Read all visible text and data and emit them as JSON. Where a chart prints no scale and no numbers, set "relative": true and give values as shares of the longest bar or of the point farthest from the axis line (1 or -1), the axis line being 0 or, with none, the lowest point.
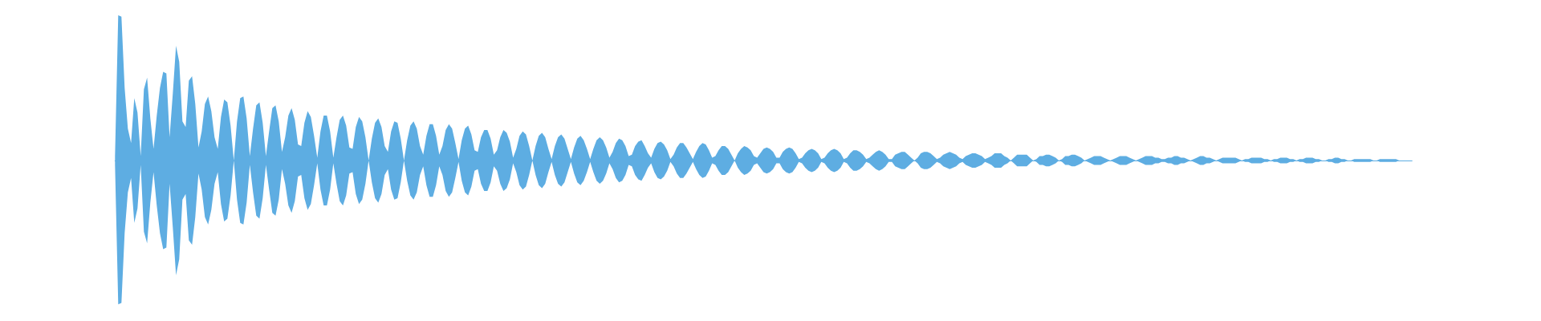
{
  "chart_data": {
    "type": "area",
    "relative": true,
    "categories": [
      null,
      null,
      null,
      null,
      null,
      null,
      null,
      null,
      null,
      null,
      null,
      null,
      null,
      null,
      null,
      null,
      null,
      null,
      null,
      null,
      null,
      null,
      null,
      null,
      null,
      null,
      null,
      null,
      null,
      null,
      null,
      null,
      null,
      null,
      null,
      null,
      null,
      null,
      null,
      null,
      null,
      null,
      null,
      null,
      null,
      null,
      null,
      null,
      null,
      null,
      null,
      null,
      null,
      null,
      null,
      null,
      null,
      null,
      null,
      null,
      null,
      null,
      null,
      null,
      null,
      null,
      null,
      null,
      null,
      null,
      null,
      null,
      null,
      null,
      null,
      null,
      null,
      null,
      null,
      null,
      null,
      null,
      null,
      null,
      null,
      null,
      null,
      null,
      null,
      null,
      null,
      null,
      null,
      null,
      null,
      null,
      null,
      null,
      null,
      null,
      null,
      null,
      null,
      null,
      null,
      null,
      null,
      null,
      null,
      null,
      null,
      null,
      null,
      null,
      null,
      null,
      null,
      null,
      null,
      null,
      null,
      null,
      null,
      null,
      null,
      null,
      null,
      null,
      null,
      null,
      null,
      null,
      null,
      null,
      null,
      null,
      null,
      null,
      null,
      null,
      null,
      null,
      null,
      null,
      null,
      null,
      null,
      null,
      null,
      null,
      null,
      null,
      null,
      null,
      null,
      null,
      null,
      null,
      null,
      null,
      null,
      null,
      null,
      null,
      null,
      null,
      null,
      null,
      null,
      null,
      null,
      null,
      null,
      null,
      null,
      null,
      null,
      null,
      null,
      null,
      null,
      null,
      null,
      null,
      null,
      null,
      null,
      null,
      null,
      null,
      null,
      null,
      null,
      null,
      null,
      null,
      null,
      null,
      null,
      null,
      null,
      null,
      null,
      null,
      null,
      null,
      null,
      null,
      null,
      null,
      null,
      null,
      null,
      null,
      null,
      null,
      null,
      null,
      null,
      null,
      null,
      null,
      null,
      null,
      null,
      null,
      null,
      null,
      null,
      null,
      null,
      null,
      null,
      null,
      null,
      null,
      null,
      null,
      null,
      null,
      null,
      null,
      null,
      null,
      null,
      null,
      null,
      null,
      null,
      null,
      null,
      null,
      null,
      null,
      null,
      null,
      null,
      null,
      null,
      null,
      null,
      null,
      null,
      null,
      null,
      null,
      null,
      null,
      null,
      null,
      null,
      null,
      null,
      null,
      null,
      null,
      null,
      null,
      null,
      null,
      null,
      null,
      null,
      null,
      null,
      null,
      null,
      null,
      null,
      null,
      null,
      null,
      null,
      null,
      null,
      null,
      null,
      null,
      null,
      null,
      null,
      null,
      null,
      null,
      null,
      null,
      null,
      null,
      null,
      null,
      null,
      null,
      null,
      null,
      null,
      null,
      null,
      null,
      null,
      null,
      null,
      null,
      null,
      null,
      null,
      null,
      null,
      null,
      null,
      null,
      null,
      null,
      null,
      null,
      null,
      null,
      null,
      null,
      null,
      null,
      null,
      null,
      null,
      null,
      null,
      null,
      null,
      null,
      null,
      null,
      null,
      null,
      null,
      null,
      null,
      null,
      null,
      null,
      null,
      null,
      null,
      null,
      null,
      null,
      null,
      null,
      null,
      null,
      null,
      null,
      null,
      null,
      null,
      null,
      null,
      null,
      null,
      null,
      null,
      null,
      null,
      null,
      null,
      null,
      null,
      null,
      null,
      null,
      null,
      null,
      null,
      null,
      null,
      null,
      null,
      null,
      null,
      null,
      null,
      null,
      null,
      null,
      null,
      null,
      null
    ],
    "series": [
      {
        "color": "#5dade2",
        "values": [
          0.03,
          1,
          0.99,
          0.5,
          0.22,
          0.12,
          0.43,
          0.33,
          0.03,
          0.49,
          0.57,
          0.29,
          0.08,
          0.31,
          0.5,
          0.61,
          0.6,
          0.16,
          0.46,
          0.79,
          0.68,
          0.27,
          0.23,
          0.55,
          0.58,
          0.39,
          0.09,
          0.2,
          0.39,
          0.44,
          0.34,
          0.16,
          0.08,
          0.3,
          0.42,
          0.4,
          0.24,
          0,
          0.27,
          0.43,
          0.44,
          0.29,
          0.03,
          0.22,
          0.38,
          0.4,
          0.26,
          0.03,
          0.2,
          0.36,
          0.38,
          0.27,
          0.06,
          0.16,
          0.31,
          0.36,
          0.28,
          0.11,
          0.1,
          0.26,
          0.34,
          0.3,
          0.17,
          0.02,
          0.2,
          0.31,
          0.31,
          0.2,
          0.02,
          0.16,
          0.28,
          0.31,
          0.24,
          0.09,
          0.08,
          0.23,
          0.3,
          0.27,
          0.16,
          0,
          0.15,
          0.26,
          0.29,
          0.23,
          0.1,
          0.06,
          0.2,
          0.27,
          0.26,
          0.15,
          0,
          0.14,
          0.24,
          0.27,
          0.22,
          0.1,
          0.04,
          0.17,
          0.25,
          0.25,
          0.17,
          0.04,
          0.1,
          0.21,
          0.25,
          0.22,
          0.12,
          0.01,
          0.14,
          0.22,
          0.24,
          0.18,
          0.07,
          0.06,
          0.16,
          0.21,
          0.21,
          0.15,
          0.04,
          0.07,
          0.16,
          0.21,
          0.19,
          0.13,
          0.02,
          0.08,
          0.17,
          0.2,
          0.18,
          0.1,
          0,
          0.1,
          0.17,
          0.19,
          0.16,
          0.08,
          0.01,
          0.1,
          0.16,
          0.18,
          0.15,
          0.08,
          0.01,
          0.09,
          0.15,
          0.17,
          0.14,
          0.08,
          0.01,
          0.08,
          0.14,
          0.16,
          0.14,
          0.09,
          0.02,
          0.06,
          0.12,
          0.15,
          0.14,
          0.1,
          0.03,
          0.04,
          0.1,
          0.13,
          0.14,
          0.1,
          0.05,
          0.02,
          0.08,
          0.12,
          0.13,
          0.11,
          0.07,
          0.01,
          0.04,
          0.09,
          0.12,
          0.12,
          0.09,
          0.05,
          0.01,
          0.06,
          0.1,
          0.12,
          0.11,
          0.07,
          0.02,
          0.03,
          0.07,
          0.1,
          0.1,
          0.08,
          0.04,
          0,
          0.05,
          0.08,
          0.1,
          0.09,
          0.07,
          0.03,
          0.02,
          0.05,
          0.08,
          0.09,
          0.08,
          0.06,
          0.02,
          0.02,
          0.06,
          0.08,
          0.09,
          0.08,
          0.05,
          0.01,
          0.02,
          0.05,
          0.07,
          0.08,
          0.07,
          0.05,
          0.01,
          0.02,
          0.05,
          0.07,
          0.08,
          0.07,
          0.05,
          0.01,
          0.02,
          0.05,
          0.07,
          0.07,
          0.06,
          0.04,
          0.01,
          0.02,
          0.04,
          0.06,
          0.07,
          0.06,
          0.04,
          0.01,
          0.01,
          0.04,
          0.05,
          0.06,
          0.06,
          0.04,
          0.02,
          0,
          0.02,
          0.05,
          0.06,
          0.06,
          0.05,
          0.03,
          0.01,
          0.02,
          0.04,
          0.05,
          0.06,
          0.05,
          0.04,
          0.02,
          0.01,
          0.03,
          0.04,
          0.05,
          0.05,
          0.04,
          0.03,
          0.01,
          0.02,
          0.03,
          0.05,
          0.05,
          0.05,
          0.03,
          0.02,
          0,
          0.02,
          0.04,
          0.04,
          0.04,
          0.04,
          0.02,
          0,
          0.01,
          0.03,
          0.03,
          0.04,
          0.04,
          0.03,
          0.02,
          0,
          0.01,
          0.03,
          0.03,
          0.04,
          0.04,
          0.03,
          0.02,
          0,
          0.01,
          0.02,
          0.03,
          0.03,
          0.03,
          0.02,
          0.01,
          0,
          0.01,
          0.02,
          0.03,
          0.03,
          0.03,
          0.02,
          0.01,
          0,
          0.01,
          0.02,
          0.03,
          0.03,
          0.03,
          0.02,
          0.02,
          0.01,
          0.01,
          0.02,
          0.02,
          0.03,
          0.03,
          0.02,
          0.02,
          0.01,
          0,
          0.01,
          0.02,
          0.03,
          0.03,
          0.02,
          0.02,
          0.01,
          0,
          0.01,
          0.02,
          0.02,
          0.02,
          0.02,
          0.02,
          0.01,
          0,
          0.01,
          0.01,
          0.02,
          0.02,
          0.02,
          0.02,
          0.01,
          0.01,
          0,
          0.01,
          0.01,
          0.02,
          0.02,
          0.02,
          0.01,
          0.01,
          0,
          0.01,
          0.01,
          0.02,
          0.02,
          0.02,
          0.01,
          0.01,
          0,
          0,
          0.01,
          0.01,
          0.02,
          0.02,
          0.01,
          0.01,
          0,
          0,
          0.01,
          0.01,
          0.01,
          0.01,
          0.01,
          0.01,
          0,
          0,
          0.01,
          0.01,
          0.01,
          0.01,
          0.01,
          0.01,
          0,
          0,
          0,
          0,
          0
        ]
      },
      {
        "color": "#5eade2",
        "values": [
          -0.03,
          -0.99,
          -0.98,
          -0.5,
          -0.22,
          -0.12,
          -0.43,
          -0.33,
          -0.03,
          -0.49,
          -0.57,
          -0.29,
          -0.08,
          -0.31,
          -0.5,
          -0.61,
          -0.6,
          -0.16,
          -0.46,
          -0.79,
          -0.68,
          -0.27,
          -0.23,
          -0.55,
          -0.58,
          -0.39,
          -0.09,
          -0.2,
          -0.39,
          -0.44,
          -0.34,
          -0.16,
          -0.08,
          -0.3,
          -0.42,
          -0.4,
          -0.24,
          0,
          -0.27,
          -0.43,
          -0.44,
          -0.29,
          -0.03,
          -0.22,
          -0.38,
          -0.4,
          -0.26,
          -0.03,
          -0.2,
          -0.36,
          -0.38,
          -0.27,
          -0.06,
          -0.16,
          -0.31,
          -0.36,
          -0.28,
          -0.11,
          -0.1,
          -0.26,
          -0.34,
          -0.3,
          -0.17,
          -0.02,
          -0.2,
          -0.31,
          -0.31,
          -0.2,
          -0.02,
          -0.16,
          -0.28,
          -0.31,
          -0.24,
          -0.09,
          -0.08,
          -0.23,
          -0.3,
          -0.27,
          -0.16,
          0,
          -0.15,
          -0.26,
          -0.29,
          -0.23,
          -0.1,
          -0.06,
          -0.2,
          -0.27,
          -0.26,
          -0.15,
          0,
          -0.14,
          -0.24,
          -0.27,
          -0.22,
          -0.1,
          -0.04,
          -0.17,
          -0.25,
          -0.25,
          -0.17,
          -0.04,
          -0.1,
          -0.21,
          -0.25,
          -0.22,
          -0.12,
          -0.01,
          -0.14,
          -0.22,
          -0.24,
          -0.18,
          -0.07,
          -0.06,
          -0.16,
          -0.21,
          -0.21,
          -0.15,
          -0.04,
          -0.07,
          -0.16,
          -0.21,
          -0.19,
          -0.13,
          -0.02,
          -0.08,
          -0.17,
          -0.2,
          -0.18,
          -0.1,
          0,
          -0.1,
          -0.17,
          -0.19,
          -0.16,
          -0.08,
          -0.01,
          -0.1,
          -0.16,
          -0.18,
          -0.15,
          -0.08,
          -0.01,
          -0.09,
          -0.15,
          -0.17,
          -0.14,
          -0.08,
          -0.01,
          -0.08,
          -0.14,
          -0.16,
          -0.14,
          -0.09,
          -0.02,
          -0.06,
          -0.12,
          -0.15,
          -0.14,
          -0.1,
          -0.03,
          -0.04,
          -0.1,
          -0.13,
          -0.14,
          -0.1,
          -0.05,
          -0.02,
          -0.08,
          -0.12,
          -0.13,
          -0.11,
          -0.07,
          -0.01,
          -0.04,
          -0.09,
          -0.12,
          -0.12,
          -0.09,
          -0.05,
          -0.01,
          -0.06,
          -0.1,
          -0.12,
          -0.11,
          -0.07,
          -0.02,
          -0.03,
          -0.07,
          -0.1,
          -0.1,
          -0.08,
          -0.04,
          0,
          -0.05,
          -0.08,
          -0.1,
          -0.09,
          -0.07,
          -0.03,
          -0.02,
          -0.05,
          -0.08,
          -0.09,
          -0.08,
          -0.06,
          -0.02,
          -0.02,
          -0.06,
          -0.08,
          -0.09,
          -0.08,
          -0.05,
          -0.01,
          -0.02,
          -0.05,
          -0.07,
          -0.08,
          -0.07,
          -0.05,
          -0.01,
          -0.02,
          -0.05,
          -0.07,
          -0.08,
          -0.07,
          -0.05,
          -0.01,
          -0.02,
          -0.05,
          -0.07,
          -0.07,
          -0.06,
          -0.04,
          -0.01,
          -0.02,
          -0.04,
          -0.06,
          -0.07,
          -0.06,
          -0.04,
          -0.01,
          -0.01,
          -0.04,
          -0.05,
          -0.06,
          -0.06,
          -0.04,
          -0.02,
          0,
          -0.02,
          -0.05,
          -0.06,
          -0.06,
          -0.05,
          -0.03,
          -0.01,
          -0.02,
          -0.04,
          -0.05,
          -0.06,
          -0.05,
          -0.04,
          -0.02,
          -0.01,
          -0.03,
          -0.04,
          -0.05,
          -0.05,
          -0.04,
          -0.03,
          -0.01,
          -0.02,
          -0.03,
          -0.05,
          -0.05,
          -0.05,
          -0.03,
          -0.02,
          0,
          -0.02,
          -0.04,
          -0.04,
          -0.04,
          -0.04,
          -0.02,
          0,
          -0.01,
          -0.03,
          -0.03,
          -0.04,
          -0.04,
          -0.03,
          -0.02,
          0,
          -0.01,
          -0.03,
          -0.03,
          -0.04,
          -0.04,
          -0.03,
          -0.02,
          0,
          -0.01,
          -0.02,
          -0.03,
          -0.03,
          -0.03,
          -0.02,
          -0.01,
          0,
          -0.01,
          -0.02,
          -0.03,
          -0.03,
          -0.03,
          -0.02,
          -0.01,
          0,
          -0.01,
          -0.02,
          -0.03,
          -0.03,
          -0.03,
          -0.02,
          -0.02,
          -0.01,
          -0.01,
          -0.02,
          -0.02,
          -0.03,
          -0.03,
          -0.02,
          -0.02,
          -0.01,
          0,
          -0.01,
          -0.02,
          -0.03,
          -0.03,
          -0.02,
          -0.02,
          -0.01,
          0,
          -0.01,
          -0.02,
          -0.02,
          -0.02,
          -0.02,
          -0.02,
          -0.01,
          0,
          -0.01,
          -0.01,
          -0.02,
          -0.02,
          -0.02,
          -0.02,
          -0.01,
          -0.01,
          0,
          -0.01,
          -0.01,
          -0.02,
          -0.02,
          -0.02,
          -0.01,
          -0.01,
          0,
          -0.01,
          -0.01,
          -0.02,
          -0.02,
          -0.02,
          -0.01,
          -0.01,
          0,
          0,
          -0.01,
          -0.01,
          -0.02,
          -0.02,
          -0.01,
          -0.01,
          0,
          0,
          -0.01,
          -0.01,
          -0.01,
          -0.01,
          -0.01,
          -0.01,
          0,
          0,
          -0.01,
          -0.01,
          -0.01,
          -0.01,
          -0.01,
          -0.01,
          0,
          0,
          0,
          0,
          0
        ]
      }
    ]
  }
}
